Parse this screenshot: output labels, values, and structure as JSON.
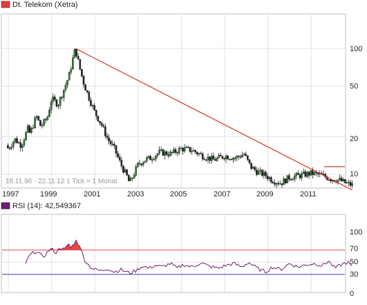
{
  "price_panel": {
    "legend_label": "Dt. Telekom (Xetra)",
    "info_text": "18.11.96 - 22.11.12   1 Tick = 1 Monat",
    "y_ticks": [
      "100",
      "50",
      "20",
      "10"
    ],
    "x_ticks": [
      "1997",
      "1999",
      "2001",
      "2003",
      "2005",
      "2007",
      "2009",
      "2011"
    ]
  },
  "rsi_panel": {
    "legend_label": "RSI (14): 42,549367",
    "y_ticks": [
      "100",
      "70",
      "50",
      "30",
      "0"
    ]
  },
  "colors": {
    "price_legend_box": "#e03a3a",
    "rsi_legend_box": "#6a1e6a",
    "candle_up": "#2e7d32",
    "candle_down": "#202020",
    "trend_line": "#d02020",
    "rsi_line": "#6a1e6a",
    "level_70": "#e05050",
    "level_30": "#3a3acc",
    "overbought_fill": "#e84848"
  },
  "chart_data": [
    {
      "type": "line",
      "title": "Dt. Telekom (Xetra)",
      "style": "monthly candlesticks with trend lines",
      "scale": "log",
      "x_range": [
        1996.9,
        2012.9
      ],
      "ylim": [
        6,
        160
      ],
      "y_ticks": [
        100,
        50,
        20,
        10
      ],
      "x_ticks": [
        1997,
        1999,
        2001,
        2003,
        2005,
        2007,
        2009,
        2011
      ],
      "grid": true,
      "legend_position": "top-left",
      "series": [
        {
          "name": "Dt. Telekom (Xetra)",
          "x": [
            1996.9,
            1997.0,
            1997.3,
            1997.6,
            1997.9,
            1998.0,
            1998.3,
            1998.5,
            1998.8,
            1999.0,
            1999.3,
            1999.5,
            1999.8,
            2000.0,
            2000.1,
            2000.3,
            2000.5,
            2000.7,
            2001.0,
            2001.3,
            2001.6,
            2001.9,
            2002.2,
            2002.5,
            2002.6,
            2002.8,
            2003.0,
            2003.3,
            2003.6,
            2004.0,
            2004.5,
            2005.0,
            2005.5,
            2006.0,
            2006.5,
            2007.0,
            2007.5,
            2007.9,
            2008.2,
            2008.5,
            2008.9,
            2009.2,
            2009.6,
            2010.0,
            2010.5,
            2011.0,
            2011.5,
            2011.9,
            2012.3,
            2012.6,
            2012.9
          ],
          "y": [
            17,
            16,
            19,
            17,
            23,
            21,
            29,
            24,
            28,
            40,
            36,
            44,
            60,
            85,
            100,
            70,
            52,
            42,
            31,
            25,
            19,
            16,
            12,
            9.5,
            8.5,
            10,
            12,
            13,
            13.5,
            15,
            14.5,
            16,
            15.5,
            14,
            13,
            14,
            13.5,
            14.5,
            11.5,
            10.5,
            9.8,
            9,
            8.5,
            9.5,
            9.8,
            10.2,
            9.8,
            9.2,
            9.0,
            8.5,
            8.2
          ]
        },
        {
          "name": "Trend line",
          "x": [
            2000.1,
            2012.9
          ],
          "y": [
            100,
            7.5
          ]
        },
        {
          "name": "Horizontal line",
          "x": [
            2011.6,
            2012.9
          ],
          "y": [
            11.5,
            11.5
          ]
        }
      ]
    },
    {
      "type": "line",
      "title": "RSI (14): 42,549367",
      "ylim": [
        0,
        100
      ],
      "y_ticks": [
        100,
        70,
        50,
        30,
        0
      ],
      "reference_lines": [
        70,
        30
      ],
      "x_range": [
        1996.9,
        2012.9
      ],
      "grid": true,
      "series": [
        {
          "name": "RSI (14)",
          "x": [
            1997.8,
            1998.0,
            1998.3,
            1998.6,
            1998.9,
            1999.0,
            1999.2,
            1999.4,
            1999.6,
            1999.8,
            1999.9,
            2000.1,
            2000.3,
            2000.5,
            2000.8,
            2001.0,
            2001.3,
            2001.6,
            2001.9,
            2002.2,
            2002.6,
            2002.9,
            2003.2,
            2003.5,
            2003.8,
            2004.1,
            2004.5,
            2004.8,
            2005.1,
            2005.5,
            2005.9,
            2006.3,
            2006.7,
            2007.0,
            2007.4,
            2007.8,
            2008.1,
            2008.5,
            2008.9,
            2009.2,
            2009.6,
            2010.0,
            2010.4,
            2010.8,
            2011.2,
            2011.5,
            2011.8,
            2012.1,
            2012.4,
            2012.7,
            2012.9
          ],
          "y": [
            48,
            62,
            68,
            58,
            70,
            72,
            65,
            75,
            70,
            80,
            72,
            86,
            78,
            55,
            42,
            38,
            36,
            40,
            34,
            38,
            32,
            36,
            44,
            40,
            45,
            42,
            48,
            40,
            46,
            42,
            49,
            43,
            40,
            44,
            48,
            42,
            50,
            40,
            34,
            42,
            38,
            48,
            42,
            46,
            48,
            44,
            52,
            40,
            46,
            50,
            42
          ]
        }
      ]
    }
  ]
}
